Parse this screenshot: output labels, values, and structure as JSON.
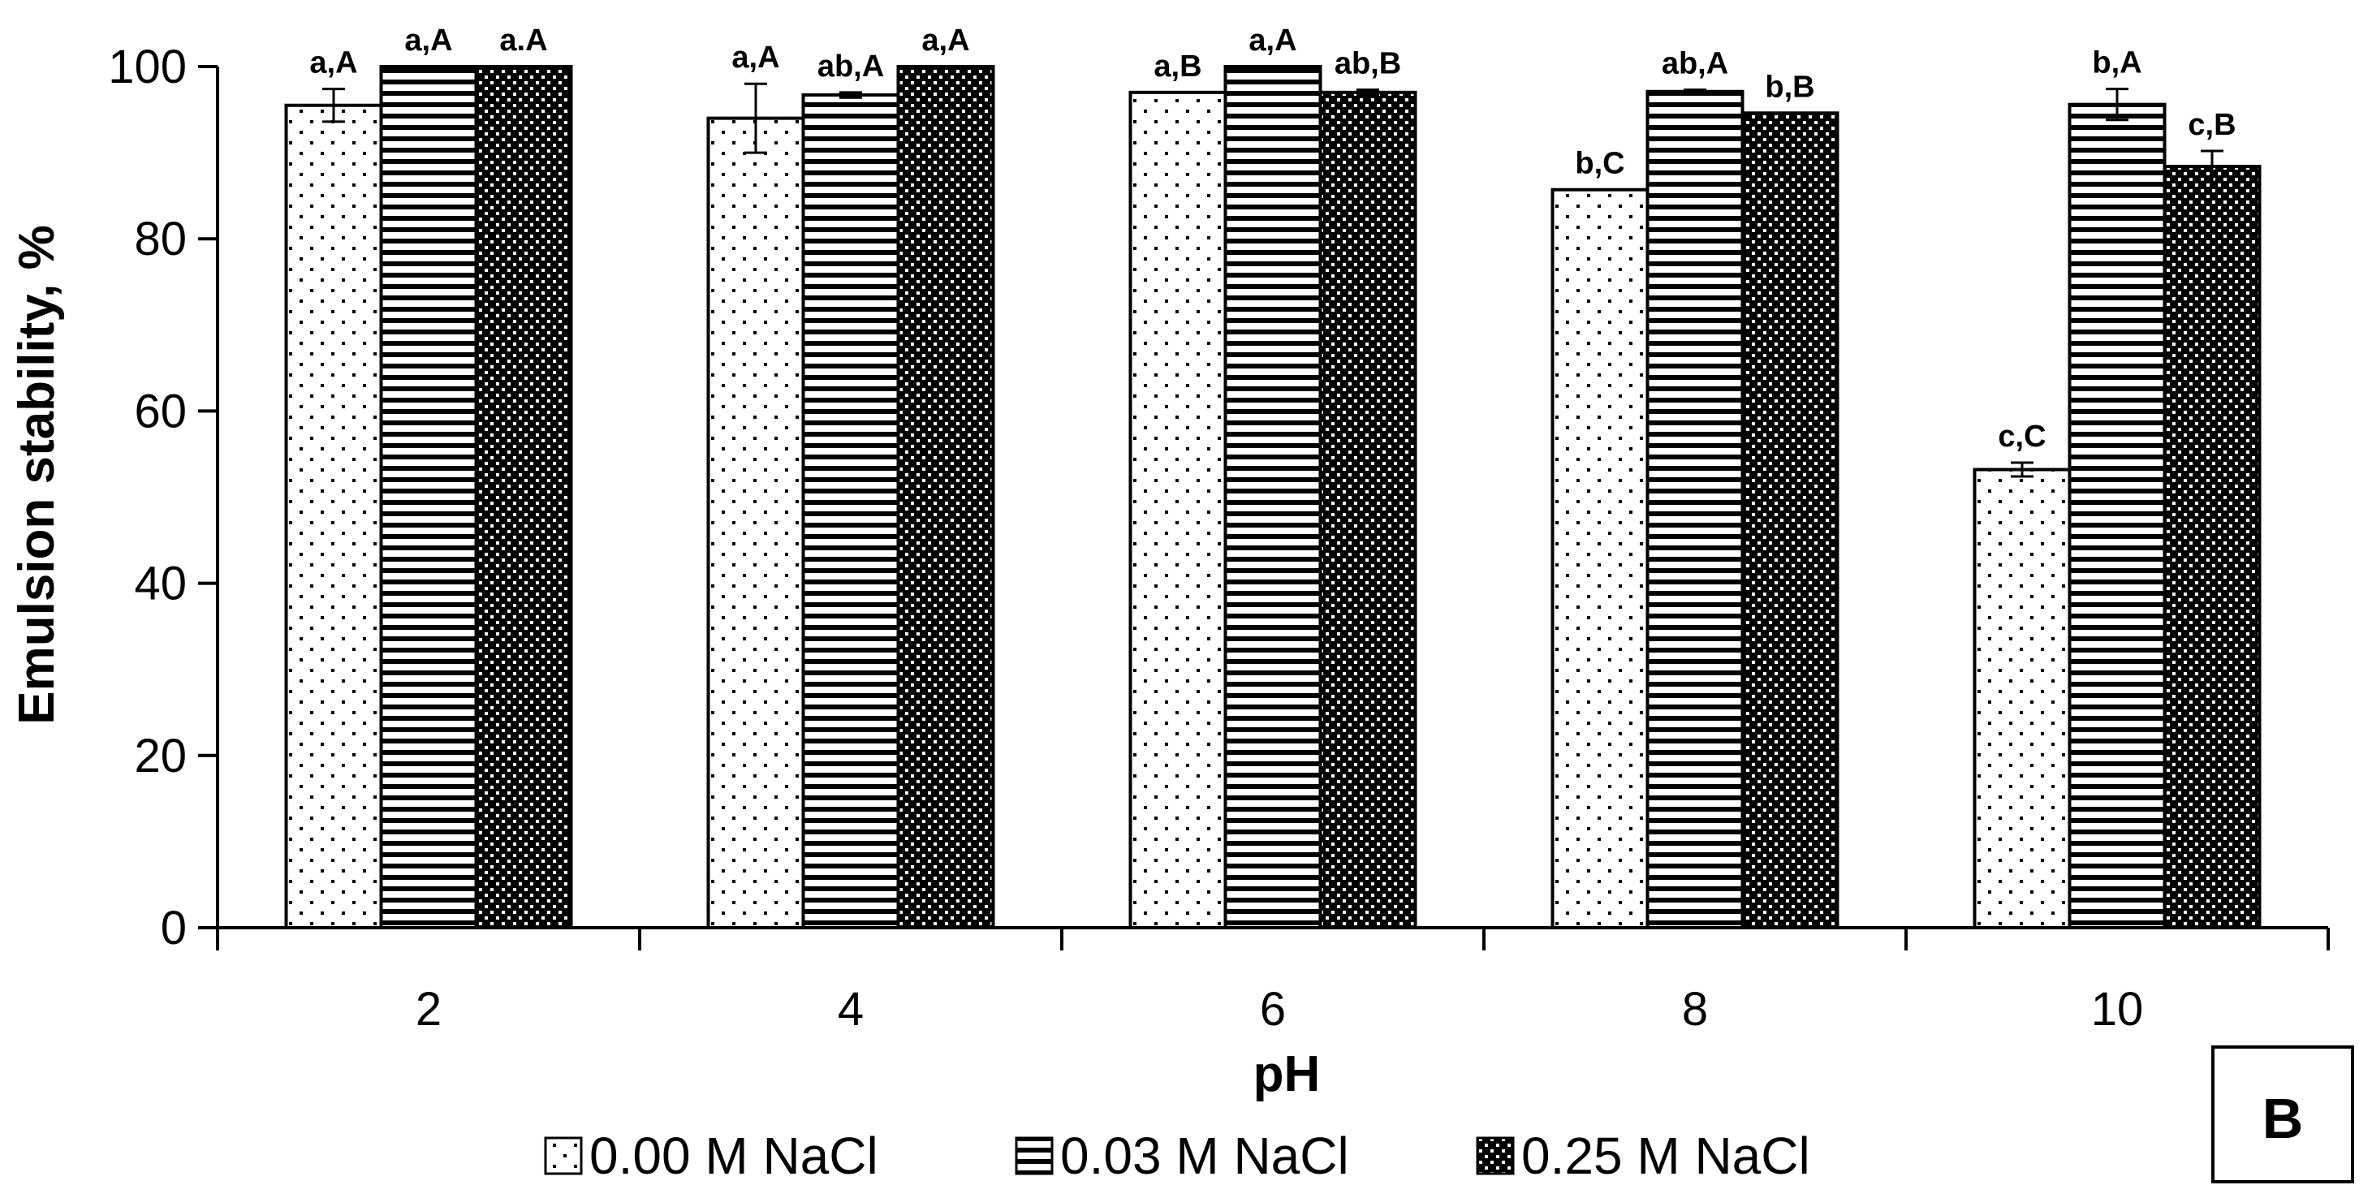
{
  "chart_data": {
    "type": "bar",
    "title": "",
    "xlabel": "pH",
    "ylabel": "Emulsion stability, %",
    "ylim": [
      0,
      100
    ],
    "yticks": [
      0,
      20,
      40,
      60,
      80,
      100
    ],
    "categories": [
      "2",
      "4",
      "6",
      "8",
      "10"
    ],
    "grid": false,
    "legend_position": "bottom",
    "panel_label": "B",
    "series": [
      {
        "name": "0.00 M NaCl",
        "pattern": "dots-sparse",
        "values": [
          95.5,
          94.0,
          97.0,
          85.7,
          53.2
        ],
        "errors": [
          1.9,
          4.0,
          0.0,
          0.0,
          0.8
        ],
        "labels": [
          "a,A",
          "a,A",
          "a,B",
          "b,C",
          "c,C"
        ]
      },
      {
        "name": "0.03 M NaCl",
        "pattern": "horizontal-lines",
        "values": [
          100.0,
          96.7,
          100.0,
          97.1,
          95.6
        ],
        "errors": [
          0.0,
          0.3,
          0.0,
          0.2,
          1.8
        ],
        "labels": [
          "a,A",
          "ab,A",
          "a,A",
          "ab,A",
          "b,A"
        ]
      },
      {
        "name": "0.25 M NaCl",
        "pattern": "dots-dense",
        "values": [
          100.0,
          100.0,
          97.0,
          94.6,
          88.4
        ],
        "errors": [
          0.0,
          0.0,
          0.3,
          0.0,
          1.8
        ],
        "labels": [
          "a.A",
          "a,A",
          "ab,B",
          "b,B",
          "c,B"
        ]
      }
    ]
  }
}
